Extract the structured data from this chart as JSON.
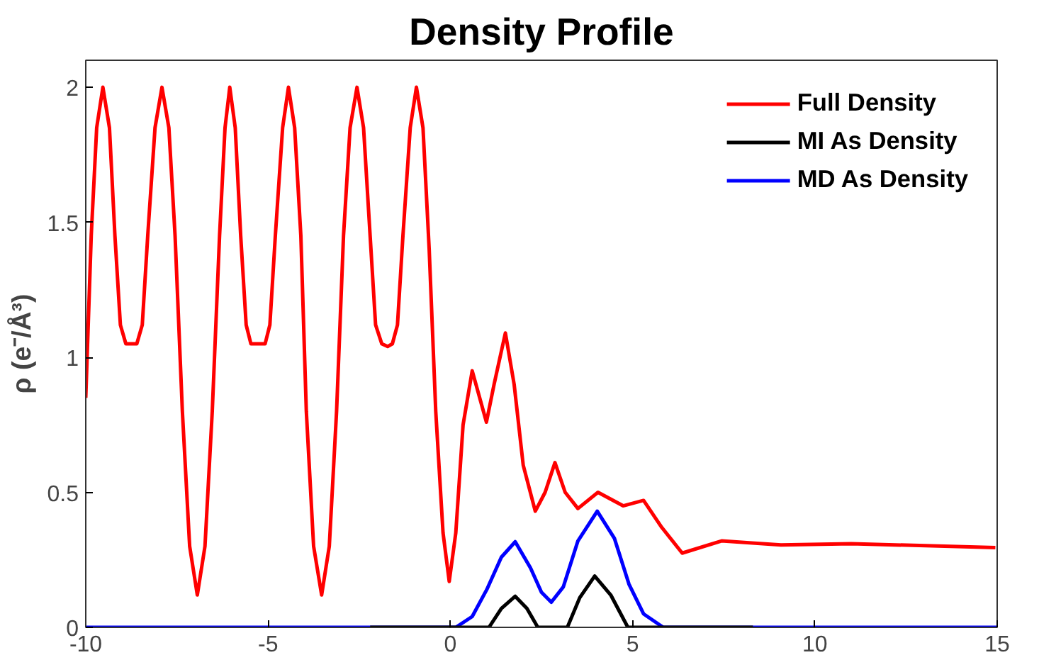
{
  "chart_data": {
    "type": "line",
    "title": "Density Profile",
    "ylabel": "ρ (e⁻/Å³)",
    "xlim": [
      -10,
      15
    ],
    "ylim": [
      0,
      2.1
    ],
    "xticks": [
      -10,
      -5,
      0,
      5,
      10,
      15
    ],
    "yticks": [
      0,
      0.5,
      1,
      1.5,
      2
    ],
    "grid": false,
    "legend": "top right",
    "line_style": "solid",
    "marker": "none",
    "series": [
      {
        "name": "MD As Density",
        "color": "#0000ff",
        "x": [
          -10,
          0.15,
          0.6,
          1.0,
          1.4,
          1.78,
          2.2,
          2.5,
          2.77,
          3.1,
          3.5,
          4.03,
          4.5,
          4.9,
          5.3,
          5.84,
          15
        ],
        "values": [
          0,
          0,
          0.04,
          0.14,
          0.26,
          0.317,
          0.22,
          0.13,
          0.093,
          0.15,
          0.32,
          0.43,
          0.33,
          0.16,
          0.05,
          0,
          0
        ]
      },
      {
        "name": "MI As Density",
        "color": "#000000",
        "x": [
          -2.2,
          1.06,
          1.4,
          1.78,
          2.1,
          2.4,
          3.21,
          3.55,
          3.96,
          4.4,
          4.87,
          8.3
        ],
        "values": [
          0,
          0,
          0.07,
          0.115,
          0.07,
          0,
          0,
          0.11,
          0.19,
          0.12,
          0,
          0
        ]
      },
      {
        "name": "Full Density",
        "color": "#ff0000",
        "x": [
          -10,
          -9.85,
          -9.7,
          -9.53,
          -9.35,
          -9.2,
          -9.05,
          -8.9,
          -8.6,
          -8.45,
          -8.3,
          -8.1,
          -7.91,
          -7.72,
          -7.55,
          -7.35,
          -7.15,
          -6.94,
          -6.73,
          -6.53,
          -6.33,
          -6.18,
          -6.05,
          -5.9,
          -5.75,
          -5.6,
          -5.47,
          -5.08,
          -4.95,
          -4.8,
          -4.6,
          -4.44,
          -4.27,
          -4.1,
          -3.95,
          -3.75,
          -3.53,
          -3.32,
          -3.12,
          -2.93,
          -2.75,
          -2.56,
          -2.38,
          -2.2,
          -2.05,
          -1.88,
          -1.72,
          -1.59,
          -1.45,
          -1.3,
          -1.1,
          -0.93,
          -0.75,
          -0.58,
          -0.4,
          -0.2,
          -0.03,
          0.15,
          0.35,
          0.6,
          0.99,
          1.2,
          1.51,
          1.75,
          2.0,
          2.33,
          2.6,
          2.87,
          3.15,
          3.5,
          4.05,
          4.74,
          5.3,
          5.8,
          6.36,
          7.44,
          9.07,
          11.0,
          14.95
        ],
        "values": [
          0.85,
          1.45,
          1.85,
          2.0,
          1.85,
          1.45,
          1.12,
          1.05,
          1.05,
          1.12,
          1.45,
          1.85,
          2.0,
          1.85,
          1.45,
          0.8,
          0.3,
          0.12,
          0.3,
          0.8,
          1.45,
          1.85,
          2.0,
          1.85,
          1.45,
          1.12,
          1.05,
          1.05,
          1.12,
          1.45,
          1.85,
          2.0,
          1.85,
          1.45,
          0.8,
          0.3,
          0.12,
          0.3,
          0.8,
          1.45,
          1.85,
          2.0,
          1.85,
          1.45,
          1.12,
          1.05,
          1.04,
          1.05,
          1.12,
          1.45,
          1.85,
          2.0,
          1.85,
          1.4,
          0.8,
          0.35,
          0.17,
          0.35,
          0.75,
          0.95,
          0.76,
          0.9,
          1.09,
          0.9,
          0.6,
          0.43,
          0.5,
          0.61,
          0.5,
          0.44,
          0.5,
          0.45,
          0.47,
          0.37,
          0.275,
          0.32,
          0.305,
          0.31,
          0.295
        ]
      }
    ]
  }
}
